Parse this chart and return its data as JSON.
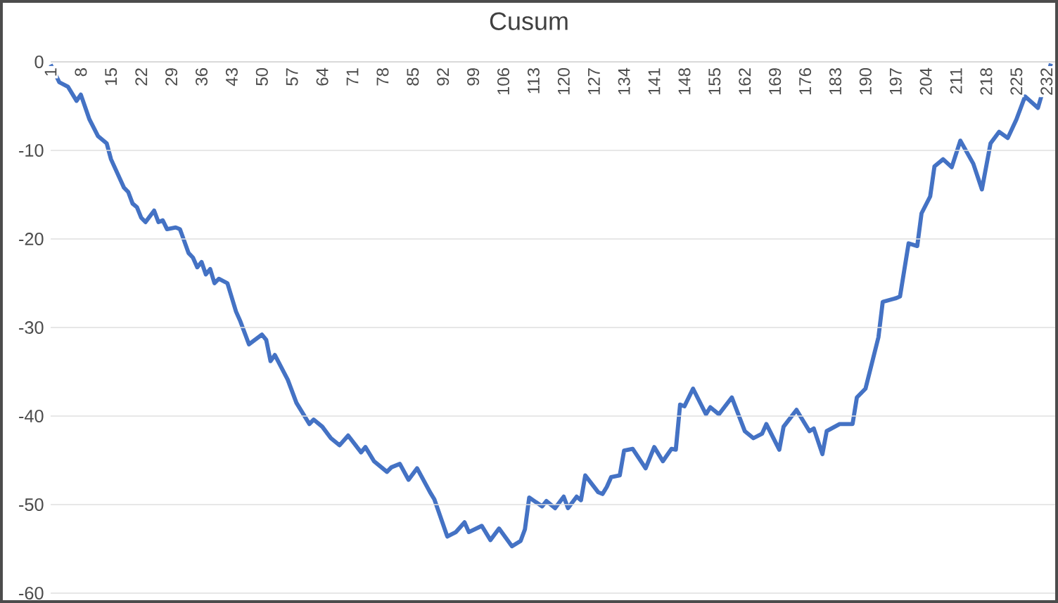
{
  "chart_data": {
    "type": "line",
    "title": "Cusum",
    "color": "#4472c4",
    "grid": "y",
    "x": [
      1,
      3,
      5,
      7,
      8,
      10,
      12,
      14,
      15,
      18,
      19,
      20,
      21,
      22,
      23,
      25,
      26,
      27,
      28,
      30,
      31,
      33,
      34,
      35,
      36,
      37,
      38,
      39,
      40,
      42,
      44,
      45,
      47,
      50,
      51,
      52,
      53,
      56,
      58,
      59,
      61,
      62,
      64,
      66,
      68,
      70,
      73,
      74,
      76,
      79,
      80,
      82,
      84,
      86,
      89,
      90,
      93,
      95,
      97,
      98,
      101,
      103,
      105,
      108,
      110,
      111,
      112,
      115,
      116,
      118,
      120,
      121,
      123,
      124,
      125,
      128,
      129,
      130,
      131,
      133,
      134,
      136,
      139,
      141,
      143,
      145,
      146,
      147,
      148,
      150,
      153,
      154,
      156,
      159,
      162,
      164,
      166,
      167,
      170,
      171,
      174,
      177,
      178,
      180,
      181,
      184,
      187,
      188,
      190,
      193,
      194,
      197,
      198,
      200,
      202,
      203,
      205,
      206,
      208,
      210,
      212,
      215,
      217,
      219,
      221,
      223,
      225,
      227,
      230,
      233
    ],
    "values": [
      -0.3,
      -2.3,
      -2.8,
      -4.4,
      -3.7,
      -6.5,
      -8.4,
      -9.2,
      -11,
      -14.2,
      -14.7,
      -16,
      -16.4,
      -17.6,
      -18.1,
      -16.8,
      -18.1,
      -17.9,
      -18.9,
      -18.7,
      -18.9,
      -21.6,
      -22.1,
      -23.2,
      -22.6,
      -24,
      -23.4,
      -25,
      -24.5,
      -25,
      -28.2,
      -29.3,
      -31.9,
      -30.8,
      -31.4,
      -33.8,
      -33.1,
      -35.9,
      -38.5,
      -39.3,
      -40.9,
      -40.4,
      -41.2,
      -42.5,
      -43.3,
      -42.2,
      -44.1,
      -43.5,
      -45.1,
      -46.3,
      -45.8,
      -45.4,
      -47.2,
      -45.9,
      -48.6,
      -49.4,
      -53.6,
      -53.1,
      -52,
      -53.1,
      -52.4,
      -54,
      -52.7,
      -54.7,
      -54.1,
      -52.8,
      -49.2,
      -50.2,
      -49.6,
      -50.4,
      -49.1,
      -50.4,
      -49.1,
      -49.5,
      -46.7,
      -48.6,
      -48.8,
      -48,
      -46.9,
      -46.7,
      -43.9,
      -43.7,
      -45.9,
      -43.5,
      -45.1,
      -43.7,
      -43.8,
      -38.7,
      -38.9,
      -36.9,
      -39.8,
      -39,
      -39.8,
      -37.9,
      -41.7,
      -42.5,
      -42,
      -40.9,
      -43.8,
      -41.2,
      -39.3,
      -41.7,
      -41.4,
      -44.3,
      -41.7,
      -40.9,
      -40.9,
      -37.9,
      -36.9,
      -31.1,
      -27.1,
      -26.7,
      -26.5,
      -20.5,
      -20.8,
      -17.1,
      -15.2,
      -11.8,
      -11,
      -11.9,
      -8.9,
      -11.5,
      -14.4,
      -9.2,
      -7.9,
      -8.6,
      -6.5,
      -3.9,
      -5.2,
      -0.2
    ],
    "xlim": [
      1,
      234
    ],
    "ylim": [
      -60,
      0
    ],
    "xticks": [
      1,
      8,
      15,
      22,
      29,
      36,
      43,
      50,
      57,
      64,
      71,
      78,
      85,
      92,
      99,
      106,
      113,
      120,
      127,
      134,
      141,
      148,
      155,
      162,
      169,
      176,
      183,
      190,
      197,
      204,
      211,
      218,
      225,
      232
    ],
    "yticks": [
      -60,
      -50,
      -40,
      -30,
      -20,
      -10,
      0
    ]
  }
}
